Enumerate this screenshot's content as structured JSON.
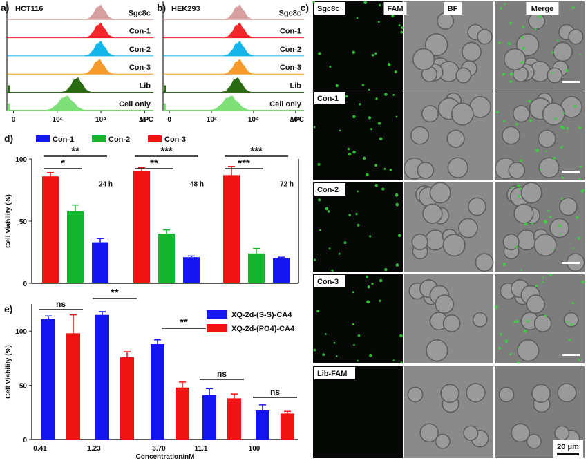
{
  "panel_a": {
    "letter": "a)",
    "cell_line": "HCT116",
    "rows": [
      {
        "label": "Sgc8c",
        "color": "#d7a0a0",
        "peak_log": 3.95
      },
      {
        "label": "Con-1",
        "color": "#f0262a",
        "peak_log": 3.95
      },
      {
        "label": "Con-2",
        "color": "#14b5ea",
        "peak_log": 3.95
      },
      {
        "label": "Con-3",
        "color": "#f59a2b",
        "peak_log": 3.9
      },
      {
        "label": "Lib",
        "color": "#2a6a10",
        "peak_log": 2.9
      },
      {
        "label": "Cell only",
        "color": "#7fe07a",
        "peak_log": 2.4
      }
    ],
    "x_ticks": [
      "0",
      "10²",
      "10⁴",
      "10⁶"
    ],
    "x_label": "APC"
  },
  "panel_b": {
    "letter": "b)",
    "cell_line": "HEK293",
    "rows": [
      {
        "label": "Sgc8c",
        "color": "#d7a0a0",
        "peak_log": 3.3
      },
      {
        "label": "Con-1",
        "color": "#f0262a",
        "peak_log": 3.3
      },
      {
        "label": "Con-2",
        "color": "#14b5ea",
        "peak_log": 3.3
      },
      {
        "label": "Con-3",
        "color": "#f59a2b",
        "peak_log": 3.3
      },
      {
        "label": "Lib",
        "color": "#2a6a10",
        "peak_log": 3.2
      },
      {
        "label": "Cell only",
        "color": "#7fe07a",
        "peak_log": 2.9
      }
    ],
    "x_ticks": [
      "0",
      "10²",
      "10⁴",
      "10⁶"
    ],
    "x_label": "APC"
  },
  "panel_c": {
    "letter": "c)",
    "columns": [
      "FAM",
      "BF",
      "Merge"
    ],
    "rows": [
      "Sgc8c",
      "Con-1",
      "Con-2",
      "Con-3",
      "Lib-FAM"
    ],
    "scale_bar": "20 μm"
  },
  "chart_data": [
    {
      "type": "bar",
      "panel": "d)",
      "ylabel": "Cell Viability (%)",
      "ylim": [
        0,
        100
      ],
      "yticks": [
        "0",
        "50",
        "100"
      ],
      "groups": [
        "24 h",
        "48 h",
        "72 h"
      ],
      "series": [
        {
          "name": "Con-1",
          "color": "#1515f0",
          "values": [
            33,
            21,
            20
          ],
          "errors": [
            3,
            1,
            1
          ]
        },
        {
          "name": "Con-2",
          "color": "#13b52f",
          "values": [
            58,
            40,
            24
          ],
          "errors": [
            5,
            3,
            4
          ]
        },
        {
          "name": "Con-3",
          "color": "#f01313",
          "values": [
            86,
            90,
            87
          ],
          "errors": [
            3,
            3,
            7
          ]
        }
      ],
      "significance": [
        {
          "label": "**",
          "group": 0
        },
        {
          "label": "*",
          "group": 0
        },
        {
          "label": "***",
          "group": 1
        },
        {
          "label": "**",
          "group": 1
        },
        {
          "label": "***",
          "group": 2
        },
        {
          "label": "***",
          "group": 2
        }
      ]
    },
    {
      "type": "bar",
      "panel": "e)",
      "ylabel": "Cell Viability (%)",
      "xlabel": "Concentration/nM",
      "ylim": [
        0,
        125
      ],
      "yticks": [
        "0",
        "50",
        "100"
      ],
      "categories": [
        "0.41",
        "1.23",
        "3.70",
        "11.1",
        "100"
      ],
      "series": [
        {
          "name": "XQ-2d-(S-S)-CA4",
          "color": "#1515f0",
          "values": [
            111,
            115,
            88,
            41,
            27
          ],
          "errors": [
            3,
            3,
            4,
            6,
            5
          ]
        },
        {
          "name": "XQ-2d-(PO4)-CA4",
          "color": "#f01313",
          "values": [
            98,
            76,
            48,
            38,
            24
          ],
          "errors": [
            17,
            5,
            5,
            4,
            2
          ]
        }
      ],
      "significance": [
        "ns",
        "**",
        "**",
        "ns",
        "ns"
      ]
    }
  ]
}
